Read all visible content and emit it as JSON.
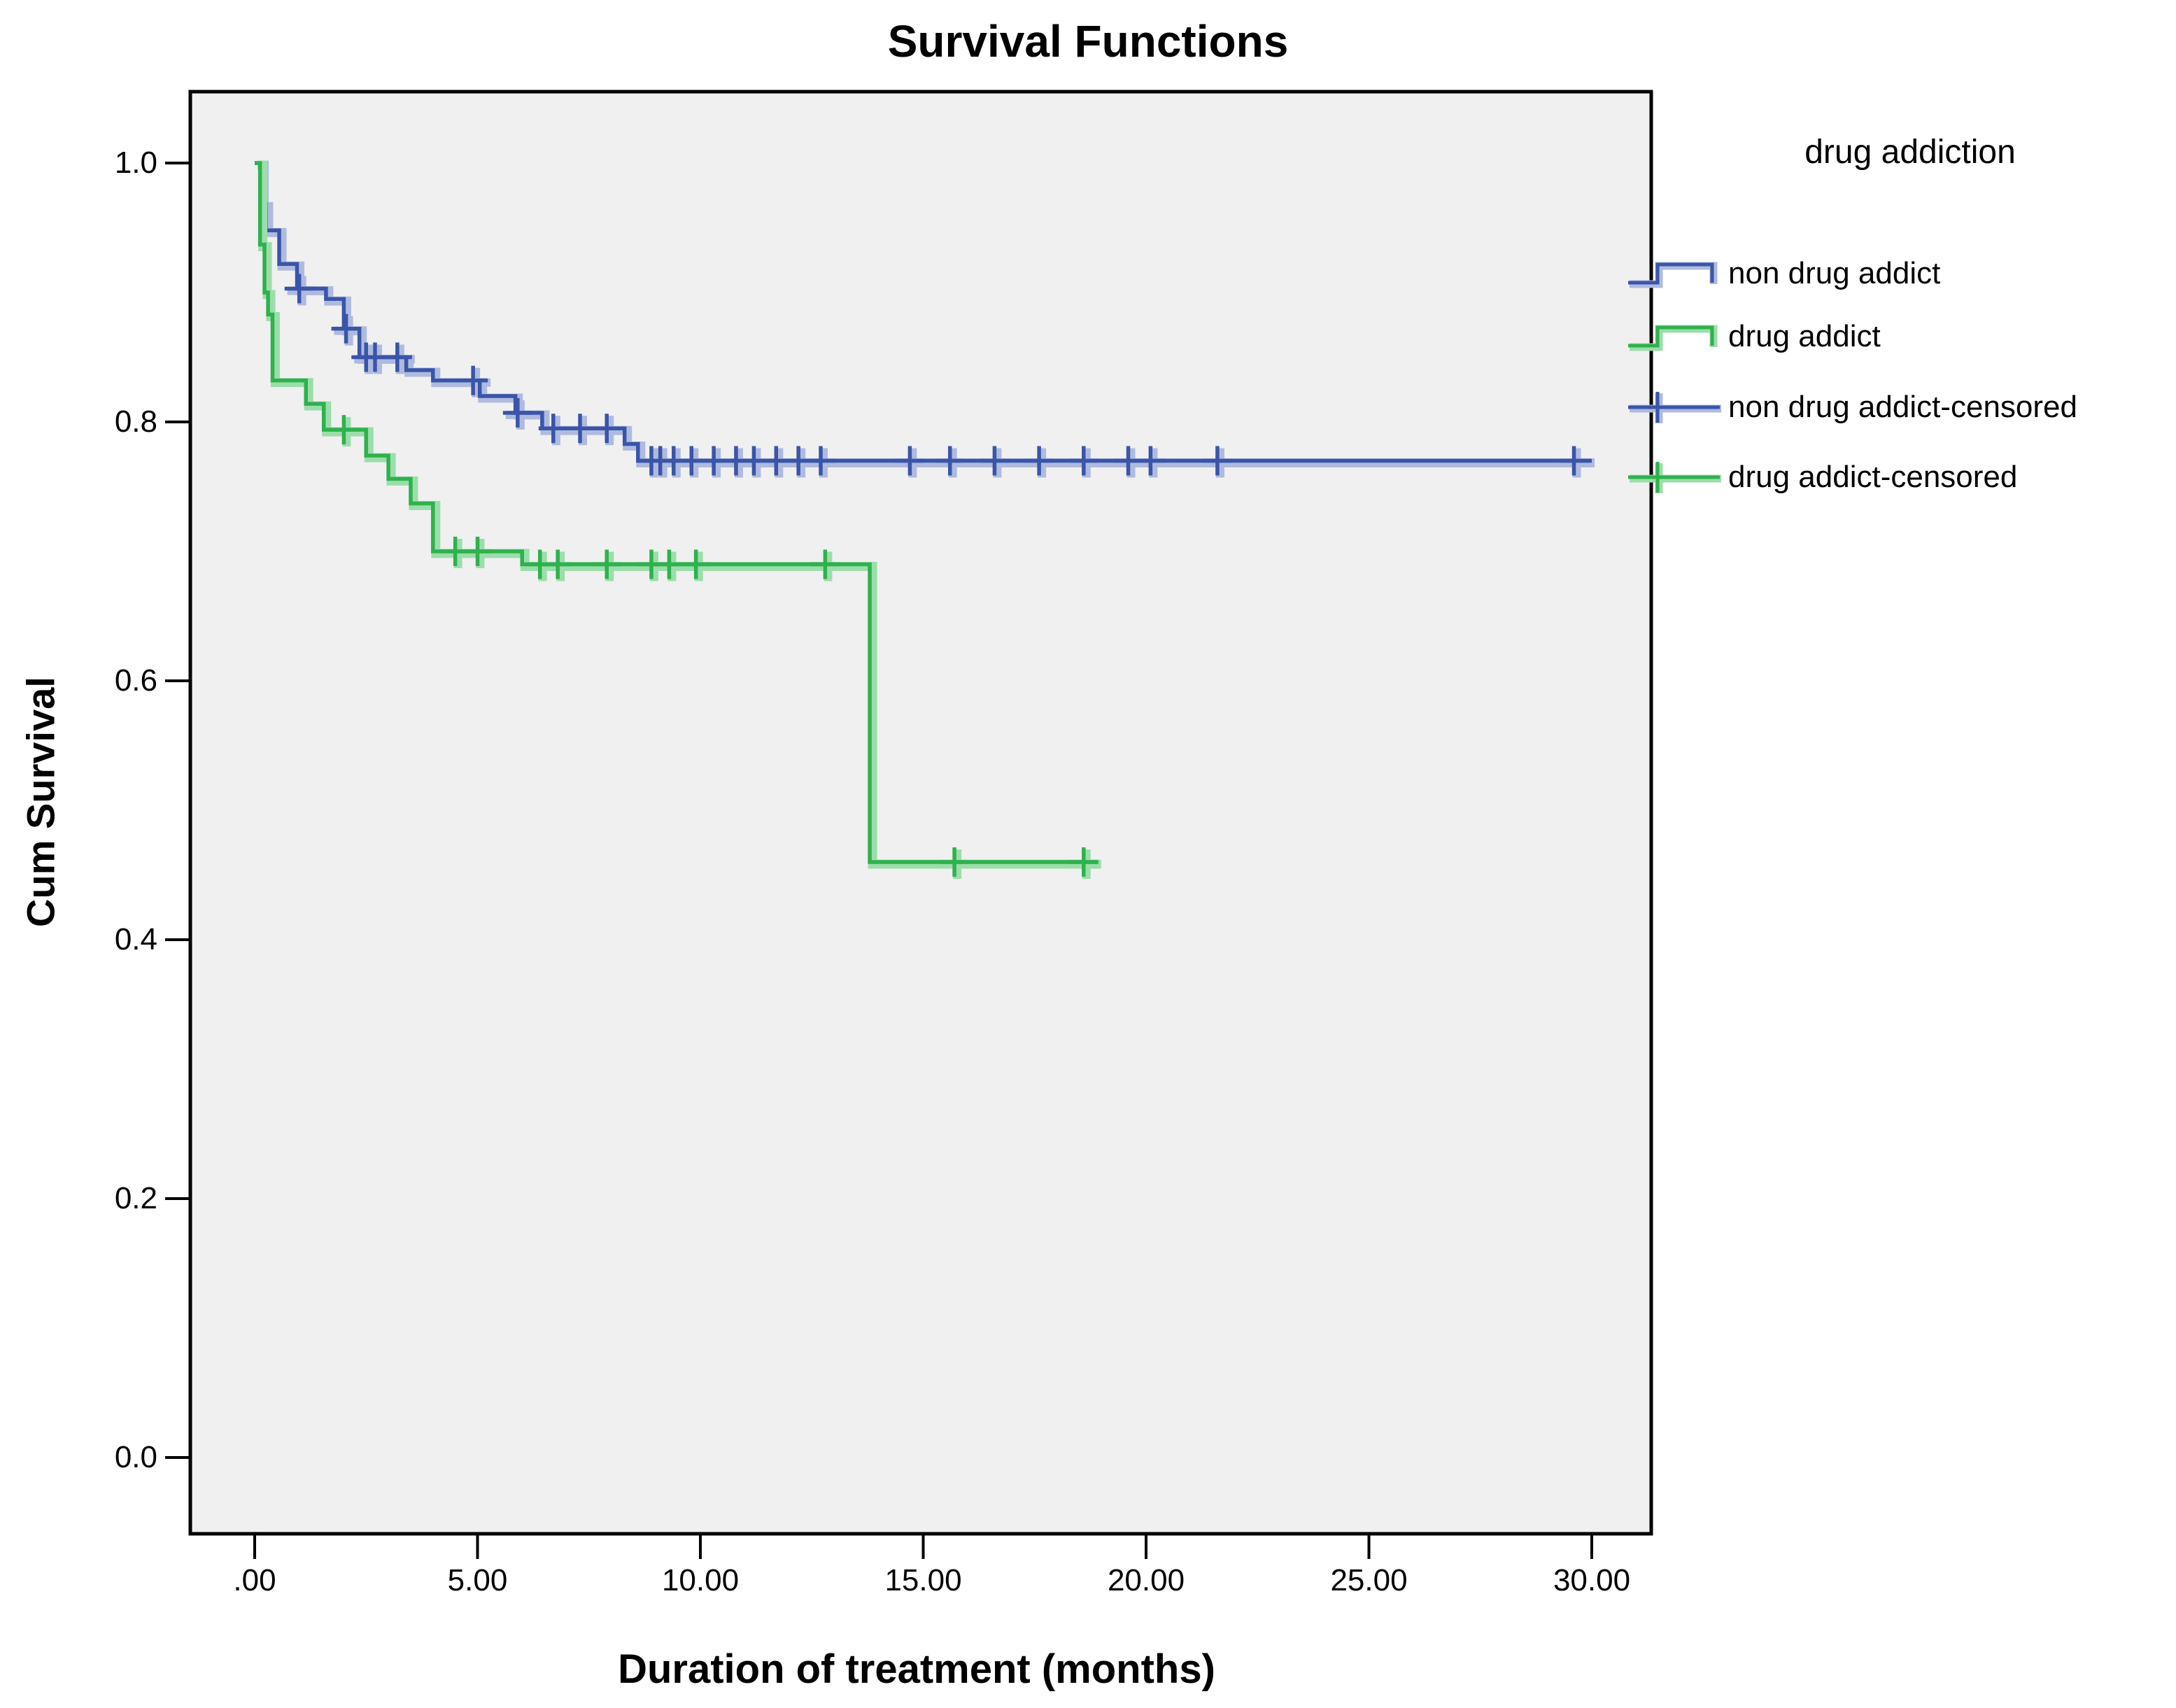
{
  "chart_data": {
    "type": "line",
    "subtype": "kaplan-meier-step-survival",
    "title": "Survival Functions",
    "xlabel": "Duration of treatment (months)",
    "ylabel": "Cum Survival",
    "x_ticks": [
      ".00",
      "5.00",
      "10.00",
      "15.00",
      "20.00",
      "25.00",
      "30.00"
    ],
    "x_tick_values": [
      0,
      5,
      10,
      15,
      20,
      25,
      30
    ],
    "y_ticks": [
      "1.0",
      "0.8",
      "0.6",
      "0.4",
      "0.2",
      "0.0"
    ],
    "y_tick_values": [
      1.0,
      0.8,
      0.6,
      0.4,
      0.2,
      0.0
    ],
    "xlim": [
      -1.45,
      31.45
    ],
    "ylim": [
      -0.06,
      1.055
    ],
    "grid": false,
    "plot_background": "#F0F0F0",
    "frame_color": "#000000",
    "legend": {
      "title": "drug addiction",
      "position": "right",
      "entries": [
        {
          "label": "non drug addict",
          "style": "step",
          "series": 0
        },
        {
          "label": "drug addict",
          "style": "step",
          "series": 1
        },
        {
          "label": "non drug addict-censored",
          "style": "plus",
          "series": 0
        },
        {
          "label": "drug addict-censored",
          "style": "plus",
          "series": 1
        }
      ]
    },
    "series": [
      {
        "name": "non drug addict",
        "color": "#3A55A8",
        "halo": "#AFBADF",
        "steps": [
          [
            0,
            1.0
          ],
          [
            0.15,
            0.968
          ],
          [
            0.25,
            0.948
          ],
          [
            0.55,
            0.922
          ],
          [
            0.95,
            0.903
          ],
          [
            1.6,
            0.895
          ],
          [
            2.0,
            0.872
          ],
          [
            2.35,
            0.85
          ],
          [
            3.4,
            0.84
          ],
          [
            4.0,
            0.832
          ],
          [
            5.05,
            0.82
          ],
          [
            5.85,
            0.807
          ],
          [
            6.45,
            0.795
          ],
          [
            8.3,
            0.783
          ],
          [
            8.6,
            0.77
          ]
        ],
        "end_x": 30.0,
        "final_value": 0.77,
        "censor_x": [
          1.0,
          2.05,
          2.5,
          2.7,
          3.2,
          4.9,
          5.9,
          6.7,
          7.3,
          7.9,
          8.9,
          9.1,
          9.4,
          9.8,
          10.3,
          10.8,
          11.2,
          11.7,
          12.2,
          12.7,
          14.7,
          15.6,
          16.6,
          17.6,
          18.6,
          19.6,
          20.1,
          21.6,
          29.6
        ]
      },
      {
        "name": "drug addict",
        "color": "#2FB14D",
        "halo": "#9CDDAB",
        "steps": [
          [
            0,
            1.0
          ],
          [
            0.12,
            0.937
          ],
          [
            0.22,
            0.9
          ],
          [
            0.3,
            0.883
          ],
          [
            0.4,
            0.832
          ],
          [
            1.15,
            0.814
          ],
          [
            1.55,
            0.794
          ],
          [
            2.5,
            0.774
          ],
          [
            3.0,
            0.756
          ],
          [
            3.5,
            0.737
          ],
          [
            4.0,
            0.7
          ],
          [
            6.0,
            0.69
          ],
          [
            13.8,
            0.46
          ]
        ],
        "end_x": 18.9,
        "final_value": 0.46,
        "censor_x": [
          2.0,
          4.5,
          5.0,
          6.4,
          6.8,
          7.9,
          8.9,
          9.3,
          9.9,
          12.8,
          15.7,
          18.6
        ]
      }
    ]
  }
}
